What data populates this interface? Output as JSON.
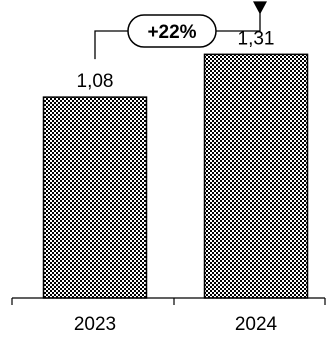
{
  "chart_data": {
    "type": "bar",
    "categories": [
      "2023",
      "2024"
    ],
    "values": [
      1.08,
      1.31
    ],
    "data_labels": [
      "1,08",
      "1,31"
    ],
    "ylim": [
      0,
      1.5
    ],
    "grid": false,
    "legend": "none",
    "annotation": {
      "text": "+22%",
      "from_category": "2023",
      "to_category": "2024"
    }
  },
  "colors": {
    "bar_fill_pattern": "black-white checker",
    "axis": "#000000",
    "text": "#000000"
  }
}
